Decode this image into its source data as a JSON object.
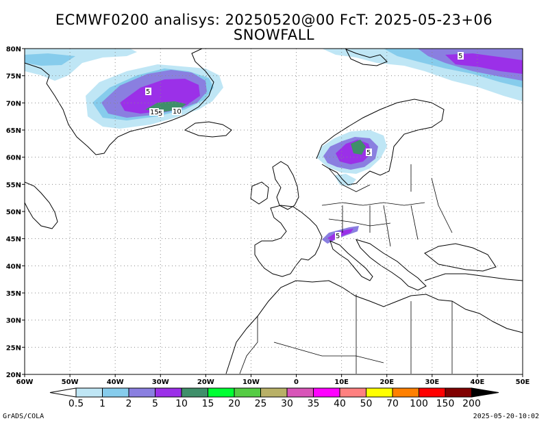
{
  "title": {
    "line1": "ECMWF0200 analisys: 20250520@00 FcT: 2025-05-23+06",
    "line2": "SNOWFALL"
  },
  "map": {
    "lat_labels": [
      "80N",
      "75N",
      "70N",
      "65N",
      "60N",
      "55N",
      "50N",
      "45N",
      "40N",
      "35N",
      "30N",
      "25N",
      "20N"
    ],
    "lon_labels": [
      "60W",
      "50W",
      "40W",
      "30W",
      "20W",
      "10W",
      "0",
      "10E",
      "20E",
      "30E",
      "40E",
      "50E"
    ],
    "extent": {
      "lon_min": -60,
      "lon_max": 50,
      "lat_min": 20,
      "lat_max": 80
    },
    "contour_labels": [
      "5",
      "5",
      "15",
      "5",
      "10",
      "5",
      "5"
    ],
    "grid": "dotted"
  },
  "colorbar": {
    "labels": [
      "0.5",
      "1",
      "2",
      "5",
      "10",
      "15",
      "20",
      "25",
      "30",
      "35",
      "40",
      "50",
      "70",
      "100",
      "150",
      "200"
    ],
    "colors": [
      "#ffffff",
      "#bfe6f5",
      "#86ccec",
      "#8a7fe0",
      "#9b30e8",
      "#3f8f6a",
      "#00ff33",
      "#55cc44",
      "#b8b066",
      "#d855b8",
      "#ff00ff",
      "#ff8080",
      "#ffff00",
      "#ff8000",
      "#ff0000",
      "#800000",
      "#000000"
    ]
  },
  "footer": {
    "left": "GrADS/COLA",
    "right": "2025-05-20-10:02"
  }
}
